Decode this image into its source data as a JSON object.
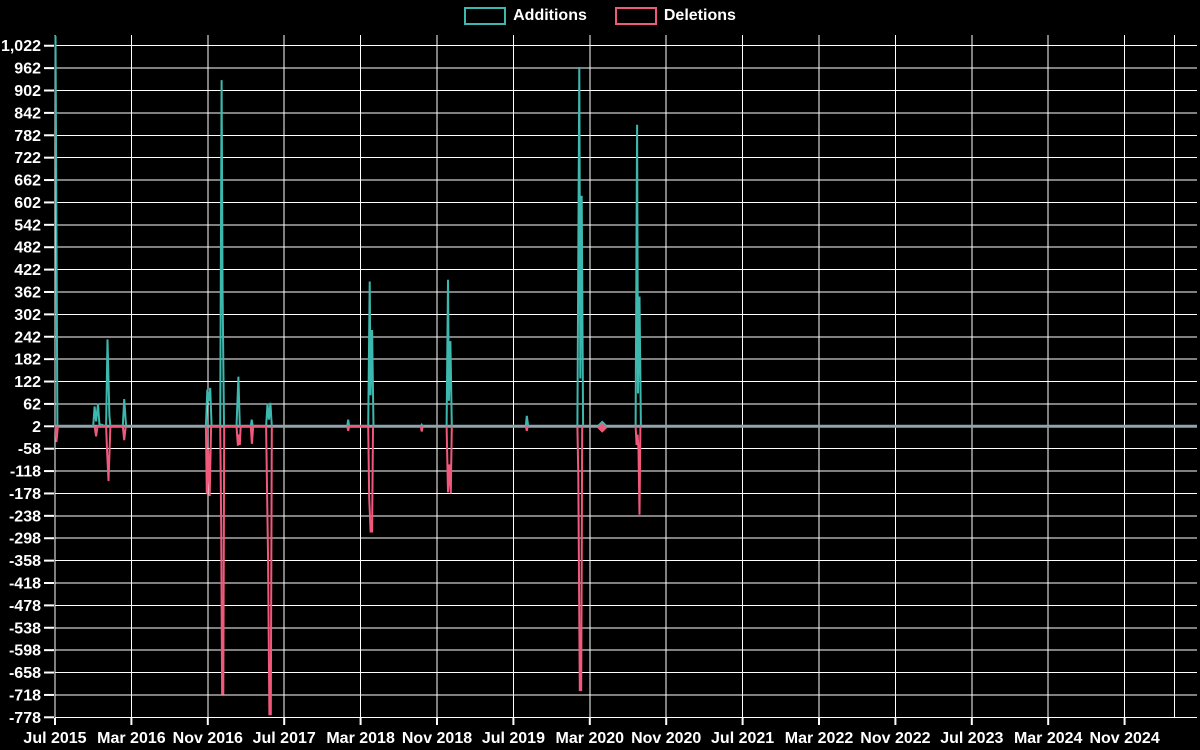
{
  "legend": {
    "items": [
      {
        "label": "Additions",
        "color": "#3db8ae"
      },
      {
        "label": "Deletions",
        "color": "#f0597c"
      }
    ]
  },
  "chart_data": {
    "type": "line",
    "title": "",
    "background": "#000000",
    "grid_color": "#ffffff",
    "text_color": "#ffffff",
    "x_axis": {
      "unit": "months since Jul 2015",
      "labels": [
        "Jul 2015",
        "Mar 2016",
        "Nov 2016",
        "Jul 2017",
        "Mar 2018",
        "Nov 2018",
        "Jul 2019",
        "Mar 2020",
        "Nov 2020",
        "Jul 2021",
        "Mar 2022",
        "Nov 2022",
        "Jul 2023",
        "Mar 2024",
        "Nov 2024"
      ],
      "label_months": [
        0,
        8,
        16,
        24,
        32,
        40,
        48,
        56,
        64,
        72,
        80,
        88,
        96,
        104,
        112
      ],
      "extra_gridline_month": 117.2
    },
    "y_axis": {
      "min": -778,
      "max": 1022,
      "interval": 60,
      "labels": [
        "1,022",
        "962",
        "902",
        "842",
        "782",
        "722",
        "662",
        "602",
        "542",
        "482",
        "422",
        "362",
        "302",
        "242",
        "182",
        "122",
        "62",
        "2",
        "-58",
        "-118",
        "-178",
        "-238",
        "-298",
        "-358",
        "-418",
        "-478",
        "-538",
        "-598",
        "-658",
        "-718",
        "-778"
      ],
      "values": [
        1022,
        962,
        902,
        842,
        782,
        722,
        662,
        602,
        542,
        482,
        422,
        362,
        302,
        242,
        182,
        122,
        62,
        2,
        -58,
        -118,
        -178,
        -238,
        -298,
        -358,
        -418,
        -478,
        -538,
        -598,
        -658,
        -718,
        -778
      ]
    },
    "baseline": {
      "value": 2,
      "color": "#90a4ae"
    },
    "series": [
      {
        "name": "Additions",
        "color": "#3db8ae",
        "segments": [
          [
            [
              0.05,
              1048
            ],
            [
              0.25,
              2
            ]
          ],
          [
            [
              4.0,
              2
            ],
            [
              4.15,
              55
            ],
            [
              4.3,
              15
            ],
            [
              4.5,
              62
            ],
            [
              4.65,
              8
            ],
            [
              5.35,
              2
            ],
            [
              5.5,
              235
            ],
            [
              5.7,
              30
            ],
            [
              5.8,
              2
            ],
            [
              7.1,
              2
            ],
            [
              7.25,
              75
            ],
            [
              7.45,
              2
            ]
          ],
          [
            [
              15.8,
              2
            ],
            [
              15.95,
              100
            ],
            [
              16.1,
              70
            ],
            [
              16.25,
              105
            ],
            [
              16.4,
              2
            ],
            [
              17.3,
              2
            ],
            [
              17.45,
              930
            ],
            [
              17.55,
              355
            ],
            [
              17.7,
              2
            ],
            [
              19.0,
              2
            ],
            [
              19.2,
              135
            ],
            [
              19.35,
              2
            ],
            [
              20.5,
              2
            ],
            [
              20.6,
              20
            ],
            [
              20.7,
              2
            ],
            [
              22.1,
              2
            ],
            [
              22.25,
              62
            ],
            [
              22.4,
              20
            ],
            [
              22.55,
              65
            ],
            [
              22.7,
              2
            ]
          ],
          [
            [
              30.6,
              2
            ],
            [
              30.7,
              20
            ],
            [
              30.8,
              2
            ],
            [
              32.8,
              2
            ],
            [
              32.95,
              390
            ],
            [
              33.05,
              85
            ],
            [
              33.2,
              260
            ],
            [
              33.35,
              2
            ]
          ],
          [
            [
              38.3,
              2
            ],
            [
              38.4,
              6
            ],
            [
              38.5,
              2
            ]
          ],
          [
            [
              41.0,
              2
            ],
            [
              41.15,
              395
            ],
            [
              41.25,
              70
            ],
            [
              41.4,
              230
            ],
            [
              41.55,
              2
            ]
          ],
          [
            [
              49.3,
              2
            ],
            [
              49.4,
              30
            ],
            [
              49.55,
              2
            ]
          ],
          [
            [
              54.7,
              2
            ],
            [
              54.9,
              965
            ],
            [
              55.0,
              130
            ],
            [
              55.15,
              620
            ],
            [
              55.3,
              2
            ]
          ],
          [
            [
              60.8,
              2
            ],
            [
              60.95,
              810
            ],
            [
              61.05,
              90
            ],
            [
              61.2,
              350
            ],
            [
              61.35,
              2
            ]
          ]
        ]
      },
      {
        "name": "Deletions",
        "color": "#f0597c",
        "segments": [
          [
            [
              0.05,
              2
            ],
            [
              0.15,
              -40
            ],
            [
              0.3,
              2
            ]
          ],
          [
            [
              4.15,
              2
            ],
            [
              4.3,
              -25
            ],
            [
              4.45,
              2
            ],
            [
              5.35,
              2
            ],
            [
              5.45,
              -60
            ],
            [
              5.6,
              -145
            ],
            [
              5.8,
              2
            ],
            [
              7.1,
              2
            ],
            [
              7.25,
              -35
            ],
            [
              7.4,
              2
            ]
          ],
          [
            [
              15.8,
              2
            ],
            [
              15.9,
              -180
            ],
            [
              16.05,
              -60
            ],
            [
              16.2,
              -185
            ],
            [
              16.35,
              2
            ],
            [
              17.3,
              2
            ],
            [
              17.4,
              -265
            ],
            [
              17.5,
              -715
            ],
            [
              17.62,
              -715
            ],
            [
              17.72,
              2
            ],
            [
              19.0,
              2
            ],
            [
              19.15,
              -50
            ],
            [
              19.25,
              -20
            ],
            [
              19.35,
              -48
            ],
            [
              19.45,
              2
            ],
            [
              20.5,
              2
            ],
            [
              20.62,
              -45
            ],
            [
              20.75,
              2
            ],
            [
              22.1,
              2
            ],
            [
              22.3,
              -340
            ],
            [
              22.45,
              -770
            ],
            [
              22.6,
              -770
            ],
            [
              22.7,
              2
            ]
          ],
          [
            [
              30.6,
              2
            ],
            [
              30.7,
              -10
            ],
            [
              30.8,
              2
            ],
            [
              32.8,
              2
            ],
            [
              32.9,
              -190
            ],
            [
              33.05,
              -280
            ],
            [
              33.2,
              -280
            ],
            [
              33.3,
              2
            ]
          ],
          [
            [
              38.3,
              2
            ],
            [
              38.4,
              -12
            ],
            [
              38.5,
              2
            ]
          ],
          [
            [
              41.0,
              2
            ],
            [
              41.15,
              -175
            ],
            [
              41.3,
              -100
            ],
            [
              41.45,
              -178
            ],
            [
              41.55,
              2
            ]
          ],
          [
            [
              49.3,
              2
            ],
            [
              49.4,
              -10
            ],
            [
              49.5,
              2
            ]
          ],
          [
            [
              54.7,
              2
            ],
            [
              54.8,
              -130
            ],
            [
              54.95,
              -705
            ],
            [
              55.1,
              -705
            ],
            [
              55.2,
              2
            ]
          ],
          [
            [
              60.8,
              2
            ],
            [
              60.9,
              -48
            ],
            [
              61.0,
              -20
            ],
            [
              61.1,
              -62
            ],
            [
              61.2,
              -235
            ],
            [
              61.3,
              2
            ]
          ]
        ]
      }
    ],
    "isolated_points": [
      {
        "series": "Additions",
        "month": 57.3,
        "value": 4
      },
      {
        "series": "Deletions",
        "month": 57.3,
        "value": -2
      }
    ]
  }
}
